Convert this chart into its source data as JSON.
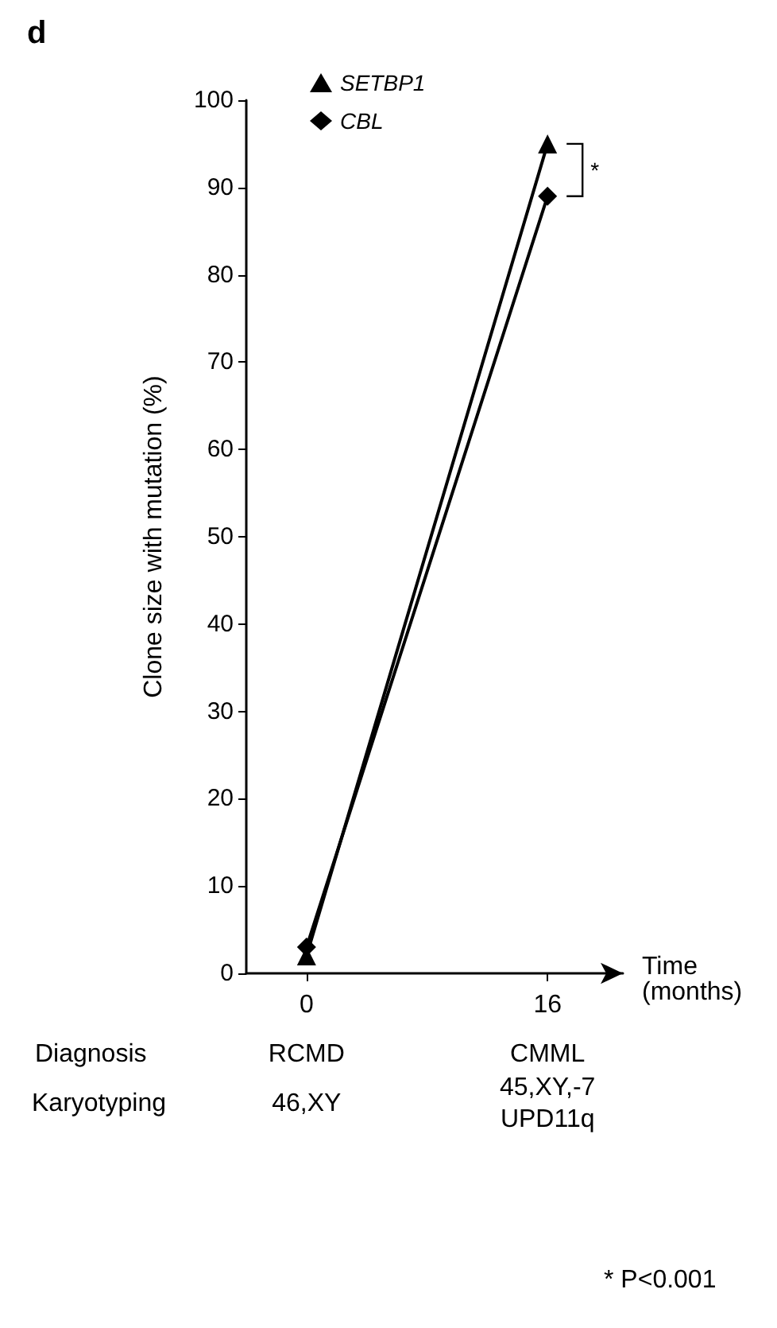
{
  "chart_data": {
    "type": "line",
    "title": "d",
    "ylabel": "Clone size with mutation (%)",
    "xlabel": "Time\n(months)",
    "x": [
      0,
      16
    ],
    "series": [
      {
        "name": "SETBP1",
        "color": "#000000",
        "marker": "triangle",
        "values": [
          2,
          95
        ]
      },
      {
        "name": "CBL",
        "color": "#000000",
        "marker": "diamond",
        "values": [
          3,
          89
        ]
      }
    ],
    "xlim": [
      -4,
      21
    ],
    "xticks": [
      0,
      16
    ],
    "ylim": [
      0,
      100
    ],
    "yticks": [
      0,
      10,
      20,
      30,
      40,
      50,
      60,
      70,
      80,
      90,
      100
    ],
    "grid": false,
    "legend": "top left",
    "line_style": "solid",
    "annotations": [
      {
        "text": "*",
        "x": 16,
        "y": 92
      },
      "Diagnosis",
      "RCMD",
      "CMML",
      "Karyotyping",
      "46,XY",
      "45,XY,-7\nUPD11q",
      "* P<0.001"
    ]
  }
}
